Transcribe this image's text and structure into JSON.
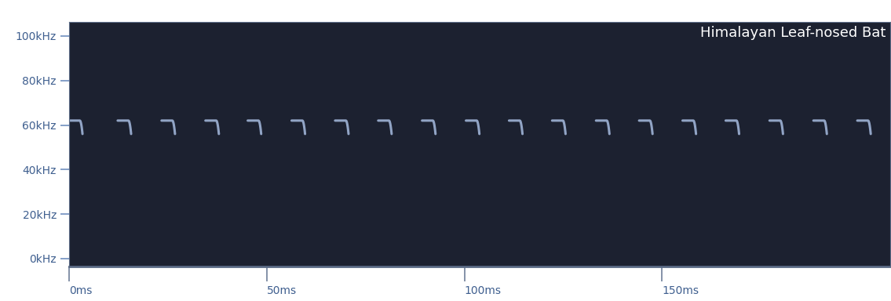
{
  "chart_data": {
    "type": "spectrogram",
    "title": "Himalayan Leaf-nosed Bat",
    "calls": {
      "start_ms": [
        0.0,
        12.3,
        23.4,
        34.5,
        45.2,
        56.3,
        67.3,
        78.2,
        89.3,
        100.4,
        111.3,
        122.2,
        133.3,
        144.2,
        155.2,
        166.1,
        177.2,
        188.3,
        199.4
      ],
      "duration_ms": 3.4,
      "cf_khz": 62,
      "end_khz": 56
    },
    "color": "#9fb3d6",
    "xlim": [
      0,
      207.7
    ],
    "ylim": [
      -3.5,
      106.3
    ],
    "xticks": [
      {
        "value": 0,
        "label": "0ms"
      },
      {
        "value": 50,
        "label": "50ms"
      },
      {
        "value": 100,
        "label": "100ms"
      },
      {
        "value": 150,
        "label": "150ms"
      }
    ],
    "yticks": [
      {
        "value": 0,
        "label": "0kHz"
      },
      {
        "value": 20,
        "label": "20kHz"
      },
      {
        "value": 40,
        "label": "40kHz"
      },
      {
        "value": 60,
        "label": "60kHz"
      },
      {
        "value": 80,
        "label": "80kHz"
      },
      {
        "value": 100,
        "label": "100kHz"
      }
    ],
    "grid": false
  }
}
